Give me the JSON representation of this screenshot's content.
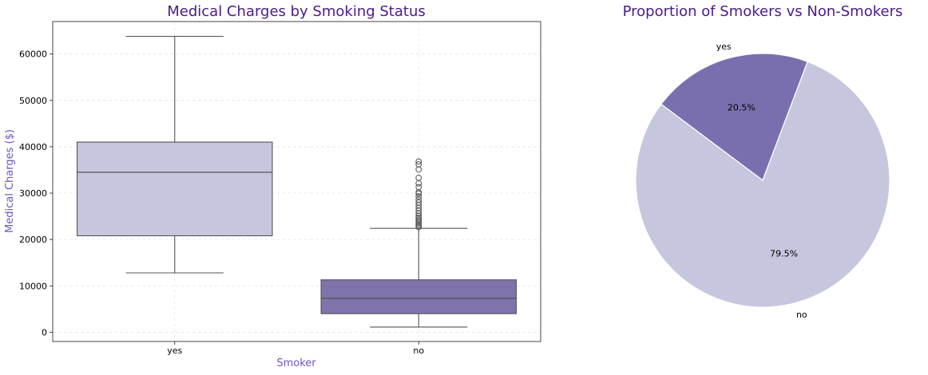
{
  "chart_data": [
    {
      "type": "box",
      "title": "Medical Charges by Smoking Status",
      "xlabel": "Smoker",
      "ylabel": "Medical Charges ($)",
      "ylim": [
        -2000,
        67000
      ],
      "yticks": [
        0,
        10000,
        20000,
        30000,
        40000,
        50000,
        60000
      ],
      "ytick_labels": [
        "0",
        "10000",
        "20000",
        "30000",
        "40000",
        "50000",
        "60000"
      ],
      "grid": true,
      "categories": [
        "yes",
        "no"
      ],
      "colors": [
        "#c6c6de",
        "#8073ac"
      ],
      "boxes": [
        {
          "category": "yes",
          "whisker_low": 12800,
          "q1": 20800,
          "median": 34500,
          "q3": 41000,
          "whisker_high": 63800,
          "outliers": []
        },
        {
          "category": "no",
          "whisker_low": 1100,
          "q1": 4000,
          "median": 7300,
          "q3": 11300,
          "whisker_high": 22400,
          "outliers": [
            22700,
            23000,
            23300,
            23600,
            23900,
            24300,
            24700,
            25100,
            25600,
            26200,
            26800,
            27400,
            28000,
            28600,
            29300,
            29900,
            30200,
            31300,
            32100,
            33300,
            35100,
            36200,
            36800
          ]
        }
      ]
    },
    {
      "type": "pie",
      "title": "Proportion of Smokers vs Non-Smokers",
      "labels": [
        "yes",
        "no"
      ],
      "values": [
        20.5,
        79.5
      ],
      "pct_labels": [
        "20.5%",
        "79.5%"
      ],
      "colors": [
        "#7a6fae",
        "#c6c6de"
      ]
    }
  ]
}
